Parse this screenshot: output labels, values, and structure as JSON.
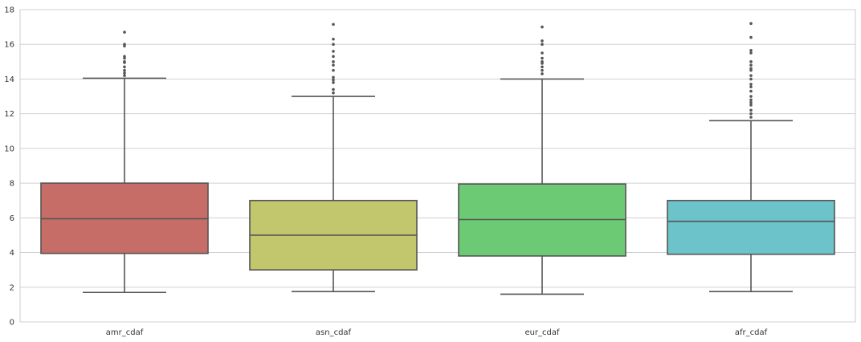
{
  "chart_data": {
    "type": "box",
    "title": "",
    "xlabel": "",
    "ylabel": "",
    "ylim": [
      0,
      18
    ],
    "yticks": [
      0,
      2,
      4,
      6,
      8,
      10,
      12,
      14,
      16,
      18
    ],
    "grid": true,
    "categories": [
      "amr_cdaf",
      "asn_cdaf",
      "eur_cdaf",
      "afr_cdaf"
    ],
    "colors": [
      "#c66d67",
      "#c2c76d",
      "#6cc974",
      "#6cc3c9"
    ],
    "boxes": [
      {
        "category": "amr_cdaf",
        "whisker_low": 1.7,
        "q1": 3.95,
        "median": 5.95,
        "q3": 8.0,
        "whisker_high": 14.05,
        "outliers": [
          14.2,
          14.35,
          14.5,
          14.7,
          14.95,
          15.0,
          15.2,
          15.3,
          15.9,
          16.0,
          16.7
        ]
      },
      {
        "category": "asn_cdaf",
        "whisker_low": 1.75,
        "q1": 3.0,
        "median": 5.0,
        "q3": 7.0,
        "whisker_high": 13.0,
        "outliers": [
          13.2,
          13.4,
          13.8,
          13.95,
          14.1,
          14.5,
          14.8,
          15.0,
          15.3,
          15.6,
          16.0,
          16.3,
          17.15
        ]
      },
      {
        "category": "eur_cdaf",
        "whisker_low": 1.6,
        "q1": 3.8,
        "median": 5.9,
        "q3": 7.95,
        "whisker_high": 14.0,
        "outliers": [
          14.3,
          14.5,
          14.7,
          14.9,
          15.0,
          15.2,
          15.5,
          16.0,
          16.2,
          17.0
        ]
      },
      {
        "category": "afr_cdaf",
        "whisker_low": 1.75,
        "q1": 3.9,
        "median": 5.8,
        "q3": 7.0,
        "whisker_high": 11.6,
        "outliers": [
          11.8,
          12.0,
          12.2,
          12.5,
          12.65,
          12.8,
          13.0,
          13.3,
          13.55,
          13.7,
          14.0,
          14.2,
          14.5,
          14.6,
          14.8,
          15.0,
          15.5,
          15.65,
          16.4,
          17.2
        ]
      }
    ]
  }
}
